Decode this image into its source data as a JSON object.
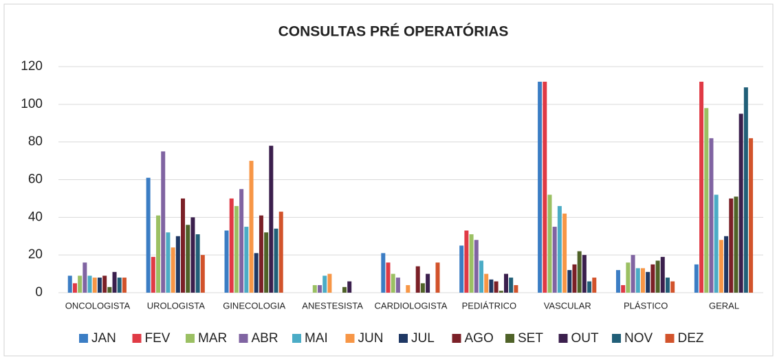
{
  "chart_data": {
    "type": "bar",
    "title": "CONSULTAS PRÉ OPERATÓRIAS",
    "categories": [
      "ONCOLOGISTA",
      "UROLOGISTA",
      "GINECOLOGIA",
      "ANESTESISTA",
      "CARDIOLOGISTA",
      "PEDIÁTRICO",
      "VASCULAR",
      "PLÁSTICO",
      "GERAL"
    ],
    "series": [
      {
        "name": "JAN",
        "color": "#3b7dc4",
        "values": [
          9,
          61,
          33,
          0,
          21,
          25,
          112,
          12,
          15
        ]
      },
      {
        "name": "FEV",
        "color": "#e03a45",
        "values": [
          5,
          19,
          50,
          0,
          16,
          33,
          112,
          4,
          112
        ]
      },
      {
        "name": "MAR",
        "color": "#9bc063",
        "values": [
          9,
          41,
          46,
          4,
          10,
          31,
          52,
          16,
          98
        ]
      },
      {
        "name": "ABR",
        "color": "#8064a2",
        "values": [
          16,
          75,
          55,
          4,
          8,
          28,
          35,
          20,
          82
        ]
      },
      {
        "name": "MAI",
        "color": "#4bacc6",
        "values": [
          9,
          32,
          35,
          9,
          0,
          17,
          46,
          13,
          52
        ]
      },
      {
        "name": "JUN",
        "color": "#f79646",
        "values": [
          8,
          24,
          70,
          10,
          4,
          10,
          42,
          13,
          28
        ]
      },
      {
        "name": "JUL",
        "color": "#1f3864",
        "values": [
          8,
          30,
          21,
          0,
          0,
          7,
          12,
          11,
          30
        ]
      },
      {
        "name": "AGO",
        "color": "#7b2027",
        "values": [
          9,
          50,
          41,
          0,
          14,
          6,
          15,
          15,
          50
        ]
      },
      {
        "name": "SET",
        "color": "#4f6228",
        "values": [
          3,
          36,
          32,
          3,
          5,
          1,
          22,
          17,
          51
        ]
      },
      {
        "name": "OUT",
        "color": "#3b1f4d",
        "values": [
          11,
          40,
          78,
          6,
          10,
          10,
          20,
          19,
          95
        ]
      },
      {
        "name": "NOV",
        "color": "#215f78",
        "values": [
          8,
          31,
          34,
          0,
          0,
          8,
          6,
          8,
          109
        ]
      },
      {
        "name": "DEZ",
        "color": "#d2532b",
        "values": [
          8,
          20,
          43,
          0,
          16,
          4,
          8,
          6,
          82
        ]
      }
    ],
    "ylim": [
      0,
      120
    ],
    "yticks": [
      0,
      20,
      40,
      60,
      80,
      100,
      120
    ],
    "grid": true,
    "legend": "bottom"
  }
}
